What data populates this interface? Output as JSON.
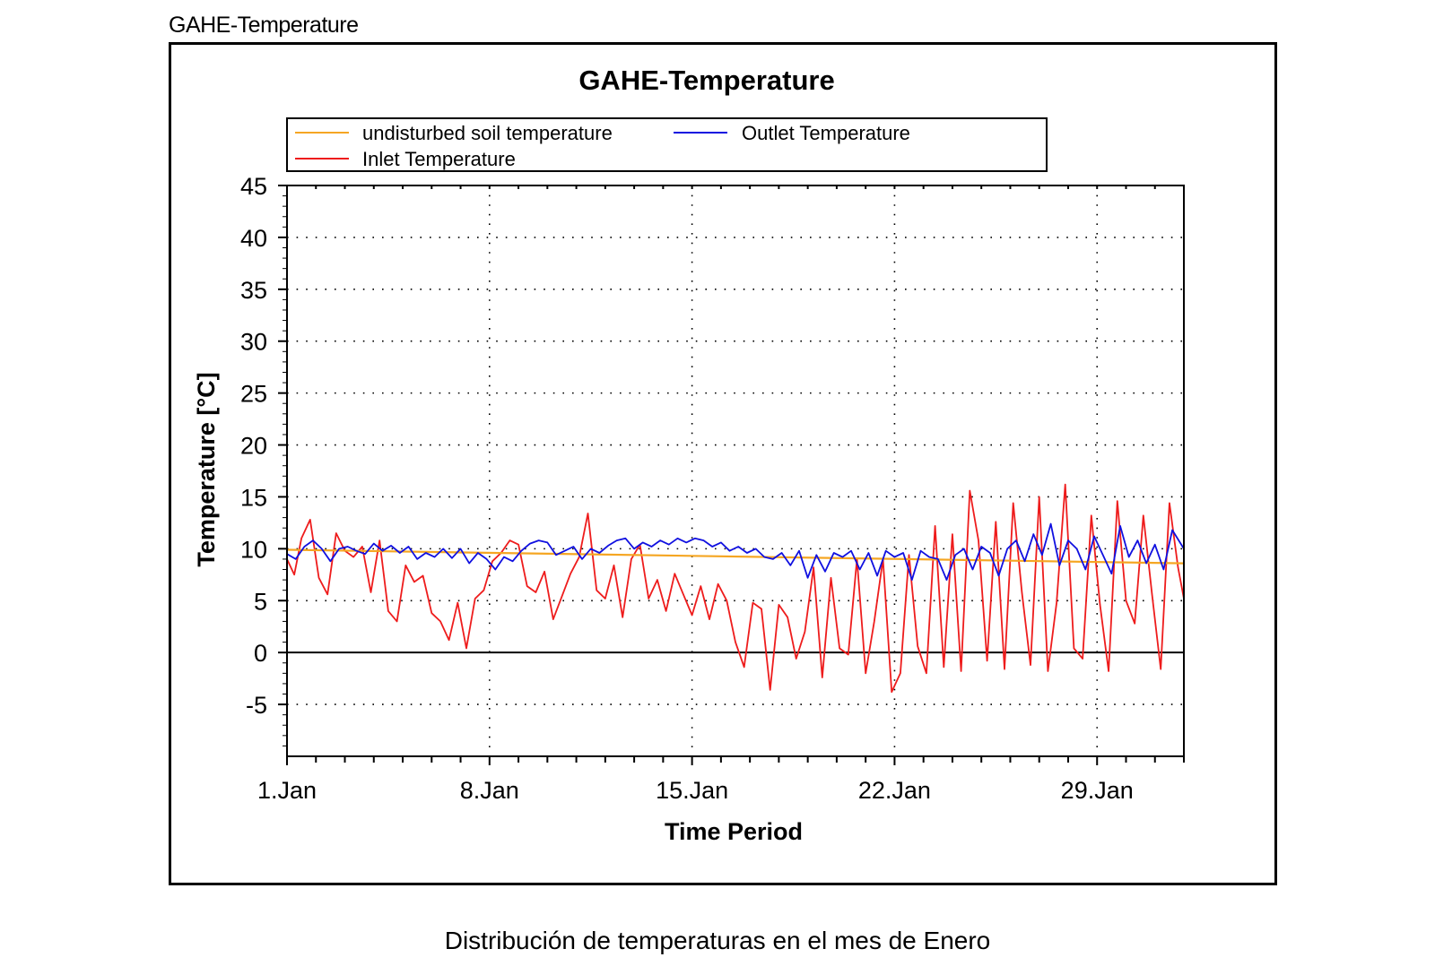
{
  "window_title": "GAHE-Temperature",
  "caption": "Distribución de temperaturas en el mes de Enero",
  "colors": {
    "soil": "#f5a623",
    "outlet": "#1010e0",
    "inlet": "#ee1c1c",
    "zero_line": "#000000",
    "grid": "#000000"
  },
  "chart_data": {
    "type": "line",
    "title": "GAHE-Temperature",
    "xlabel": "Time Period",
    "ylabel": "Temperature [°C]",
    "x_unit": "day of January",
    "xlim": [
      1,
      32
    ],
    "ylim": [
      -10,
      45
    ],
    "y_ticks": [
      45,
      40,
      35,
      30,
      25,
      20,
      15,
      10,
      5,
      0,
      -5
    ],
    "x_ticks": [
      {
        "day": 1,
        "label": "1.Jan"
      },
      {
        "day": 8,
        "label": "8.Jan"
      },
      {
        "day": 15,
        "label": "15.Jan"
      },
      {
        "day": 22,
        "label": "22.Jan"
      },
      {
        "day": 29,
        "label": "29.Jan"
      }
    ],
    "grid": true,
    "legend_position": "top",
    "legend": [
      {
        "key": "soil",
        "label": "undisturbed soil temperature"
      },
      {
        "key": "outlet",
        "label": "Outlet Temperature"
      },
      {
        "key": "inlet",
        "label": "Inlet Temperature"
      }
    ],
    "series": [
      {
        "key": "soil",
        "name": "undisturbed soil temperature",
        "x": [
          1,
          32
        ],
        "y": [
          9.9,
          8.6
        ]
      },
      {
        "key": "outlet",
        "name": "Outlet Temperature",
        "x": [
          1,
          1.3,
          1.6,
          1.9,
          2.2,
          2.5,
          2.8,
          3.1,
          3.4,
          3.7,
          4.0,
          4.3,
          4.6,
          4.9,
          5.2,
          5.5,
          5.8,
          6.1,
          6.4,
          6.7,
          7.0,
          7.3,
          7.6,
          7.9,
          8.2,
          8.5,
          8.8,
          9.1,
          9.4,
          9.7,
          10.0,
          10.3,
          10.6,
          10.9,
          11.2,
          11.5,
          11.8,
          12.1,
          12.4,
          12.7,
          13.0,
          13.3,
          13.6,
          13.9,
          14.2,
          14.5,
          14.8,
          15.1,
          15.4,
          15.7,
          16.0,
          16.3,
          16.6,
          16.9,
          17.2,
          17.5,
          17.8,
          18.1,
          18.4,
          18.7,
          19.0,
          19.3,
          19.6,
          19.9,
          20.2,
          20.5,
          20.8,
          21.1,
          21.4,
          21.7,
          22.0,
          22.3,
          22.6,
          22.9,
          23.2,
          23.5,
          23.8,
          24.1,
          24.4,
          24.7,
          25.0,
          25.3,
          25.6,
          25.9,
          26.2,
          26.5,
          26.8,
          27.1,
          27.4,
          27.7,
          28.0,
          28.3,
          28.6,
          28.9,
          29.2,
          29.5,
          29.8,
          30.1,
          30.4,
          30.7,
          31.0,
          31.3,
          31.6,
          32.0
        ],
        "y": [
          9.5,
          9.0,
          10.2,
          10.8,
          10.0,
          8.8,
          10.0,
          10.2,
          9.8,
          9.5,
          10.5,
          9.8,
          10.3,
          9.6,
          10.2,
          9.0,
          9.6,
          9.2,
          10.0,
          9.1,
          10.0,
          8.6,
          9.6,
          9.0,
          8.0,
          9.2,
          8.8,
          9.8,
          10.5,
          10.8,
          10.6,
          9.4,
          9.8,
          10.2,
          9.0,
          10.0,
          9.6,
          10.3,
          10.8,
          11.0,
          10.0,
          10.6,
          10.2,
          10.8,
          10.4,
          11.0,
          10.6,
          11.0,
          10.8,
          10.2,
          10.6,
          9.8,
          10.2,
          9.6,
          10.0,
          9.2,
          9.0,
          9.6,
          8.4,
          9.8,
          7.2,
          9.4,
          7.8,
          9.6,
          9.2,
          9.8,
          8.0,
          9.6,
          7.4,
          9.8,
          9.2,
          9.6,
          7.0,
          9.8,
          9.2,
          9.0,
          7.0,
          9.4,
          10.0,
          8.0,
          10.2,
          9.6,
          7.4,
          10.0,
          10.8,
          8.8,
          11.4,
          9.4,
          12.4,
          8.4,
          10.8,
          10.0,
          8.0,
          11.2,
          9.4,
          7.6,
          12.2,
          9.2,
          10.8,
          8.6,
          10.4,
          8.0,
          11.8,
          10.0
        ]
      },
      {
        "key": "inlet",
        "name": "Inlet Temperature",
        "x": [
          1,
          1.25,
          1.5,
          1.8,
          2.1,
          2.4,
          2.7,
          3.0,
          3.3,
          3.6,
          3.9,
          4.2,
          4.5,
          4.8,
          5.1,
          5.4,
          5.7,
          6.0,
          6.3,
          6.6,
          6.9,
          7.2,
          7.5,
          7.8,
          8.1,
          8.4,
          8.7,
          9.0,
          9.3,
          9.6,
          9.9,
          10.2,
          10.5,
          10.8,
          11.1,
          11.4,
          11.7,
          12.0,
          12.3,
          12.6,
          12.9,
          13.2,
          13.5,
          13.8,
          14.1,
          14.4,
          14.7,
          15.0,
          15.3,
          15.6,
          15.9,
          16.2,
          16.5,
          16.8,
          17.1,
          17.4,
          17.7,
          18.0,
          18.3,
          18.6,
          18.9,
          19.2,
          19.5,
          19.8,
          20.1,
          20.4,
          20.7,
          21.0,
          21.3,
          21.6,
          21.9,
          22.2,
          22.5,
          22.8,
          23.1,
          23.4,
          23.7,
          24.0,
          24.3,
          24.6,
          24.9,
          25.2,
          25.5,
          25.8,
          26.1,
          26.4,
          26.7,
          27.0,
          27.3,
          27.6,
          27.9,
          28.2,
          28.5,
          28.8,
          29.1,
          29.4,
          29.7,
          30.0,
          30.3,
          30.6,
          30.9,
          31.2,
          31.5,
          31.8,
          32.0
        ],
        "y": [
          9.0,
          7.5,
          11.0,
          12.8,
          7.2,
          5.6,
          11.5,
          9.8,
          9.2,
          10.2,
          5.8,
          10.8,
          4.0,
          3.0,
          8.4,
          6.8,
          7.4,
          3.8,
          3.0,
          1.2,
          4.8,
          0.4,
          5.2,
          6.0,
          8.8,
          9.6,
          10.8,
          10.4,
          6.4,
          5.8,
          7.8,
          3.2,
          5.4,
          7.6,
          9.2,
          13.4,
          6.0,
          5.2,
          8.4,
          3.4,
          9.0,
          10.4,
          5.2,
          7.0,
          4.0,
          7.6,
          5.6,
          3.6,
          6.4,
          3.2,
          6.6,
          5.0,
          1.0,
          -1.4,
          4.8,
          4.2,
          -3.6,
          4.6,
          3.4,
          -0.6,
          2.0,
          8.2,
          -2.4,
          7.2,
          0.4,
          -0.2,
          9.0,
          -2.0,
          3.0,
          9.0,
          -3.8,
          -2.0,
          9.4,
          0.6,
          -2.0,
          12.2,
          -1.4,
          11.4,
          -1.8,
          15.6,
          10.8,
          -0.8,
          12.6,
          -1.6,
          14.4,
          5.8,
          -1.2,
          15.0,
          -1.8,
          4.8,
          16.2,
          0.4,
          -0.6,
          13.2,
          4.6,
          -1.8,
          14.6,
          5.0,
          2.8,
          13.2,
          5.6,
          -1.6,
          14.4,
          8.2,
          5.2
        ]
      }
    ]
  }
}
